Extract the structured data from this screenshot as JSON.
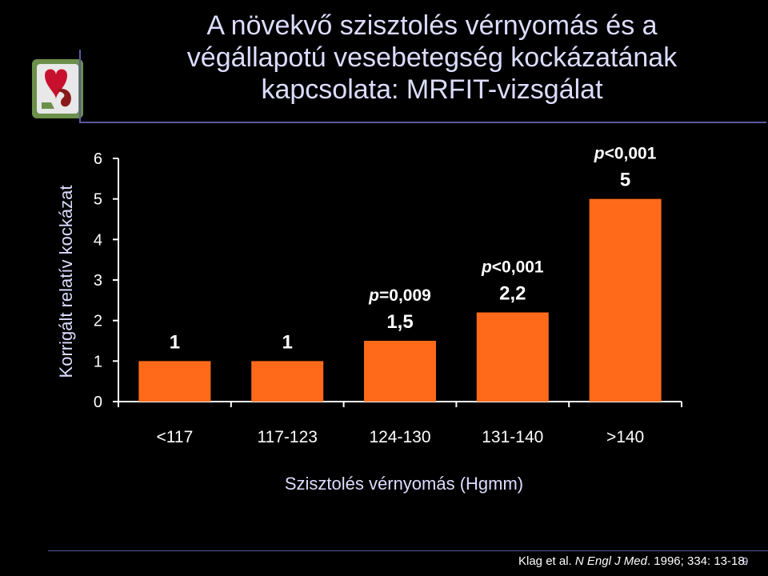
{
  "slide": {
    "title_lines": [
      "A növekvő szisztolés vérnyomás és a",
      "végállapotú vesebetegség kockázatának",
      "kapcsolata: MRFIT-vizsgálat"
    ],
    "citation": {
      "authors": "Klag et al.",
      "journal": "N Engl J Med",
      "details": ". 1996; 334: 13-18."
    },
    "page_number": "9"
  },
  "colors": {
    "background": "#000000",
    "bar": "#ff6a1a",
    "title": "#dcdcff",
    "accent_line": "#5a5aa0"
  },
  "chart_data": {
    "type": "bar",
    "categories": [
      "<117",
      "117-123",
      "124-130",
      "131-140",
      ">140"
    ],
    "values": [
      1,
      1,
      1.5,
      2.2,
      5
    ],
    "value_labels": [
      "1",
      "1",
      "1,5",
      "2,2",
      "5"
    ],
    "p_values": [
      null,
      null,
      {
        "italic": "p",
        "rest": "=0,009"
      },
      {
        "italic": "p",
        "rest": "<0,001"
      },
      {
        "italic": "p",
        "rest": "<0,001"
      }
    ],
    "xlabel": "Szisztolés vérnyomás (Hgmm)",
    "ylabel": "Korrigált relatív kockázat",
    "ylim": [
      0,
      6
    ],
    "yticks": [
      0,
      1,
      2,
      3,
      4,
      5,
      6
    ],
    "grid": false,
    "legend": "none"
  }
}
